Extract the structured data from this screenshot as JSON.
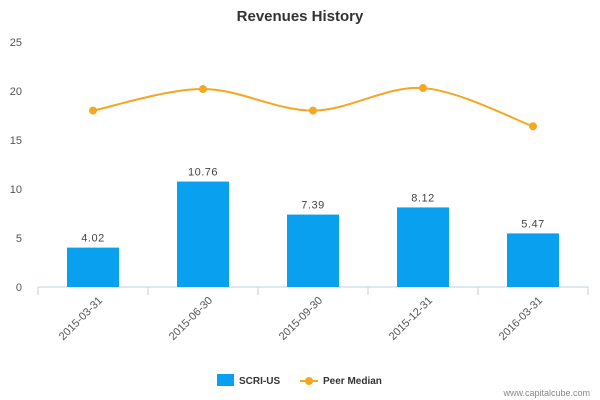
{
  "chart_data": {
    "type": "bar",
    "title": "Revenues History",
    "categories": [
      "2015-03-31",
      "2015-06-30",
      "2015-09-30",
      "2015-12-31",
      "2016-03-31"
    ],
    "series": [
      {
        "name": "SCRI-US",
        "type": "bar",
        "color": "#0aa0f0",
        "values": [
          4.02,
          10.76,
          7.39,
          8.12,
          5.47
        ],
        "labels": [
          "4.02",
          "10.76",
          "7.39",
          "8.12",
          "5.47"
        ]
      },
      {
        "name": "Peer Median",
        "type": "line",
        "color": "#f5a623",
        "values": [
          18.0,
          20.2,
          18.0,
          20.3,
          16.4
        ]
      }
    ],
    "yticks": [
      "0",
      "5",
      "10",
      "15",
      "20",
      "25"
    ],
    "ylim": [
      0,
      25
    ],
    "grid": false,
    "legend_position": "bottom"
  },
  "credit": "www.capitalcube.com"
}
